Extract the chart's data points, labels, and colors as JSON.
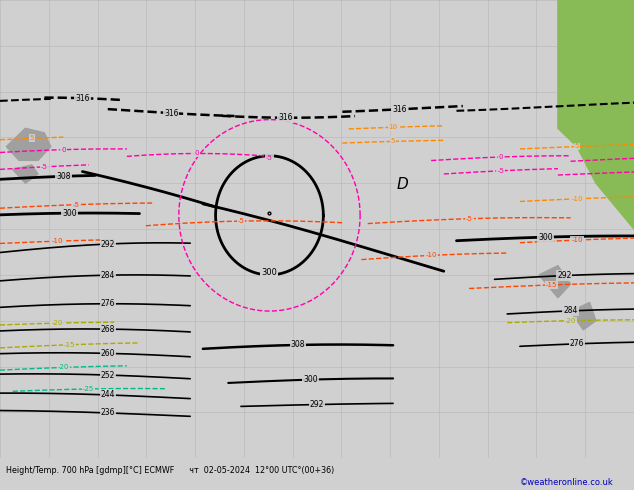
{
  "bottom_label": "Height/Temp. 700 hPa [gdmp][°C] ECMWF      чт  02-05-2024  12°00 UTC°(00+36)",
  "copyright": "©weatheronline.co.uk",
  "bg_color": "#d0d0d0",
  "land_green": "#88bb55",
  "land_gray": "#a0a0a0",
  "grid_color": "#aaaaaa",
  "black": "#000000",
  "temp_magenta": "#ff00aa",
  "temp_orange": "#ff8800",
  "temp_red": "#ff4400",
  "temp_green": "#00bb88",
  "temp_yellow": "#aaaa00",
  "fig_width": 6.34,
  "fig_height": 4.9,
  "dpi": 100
}
